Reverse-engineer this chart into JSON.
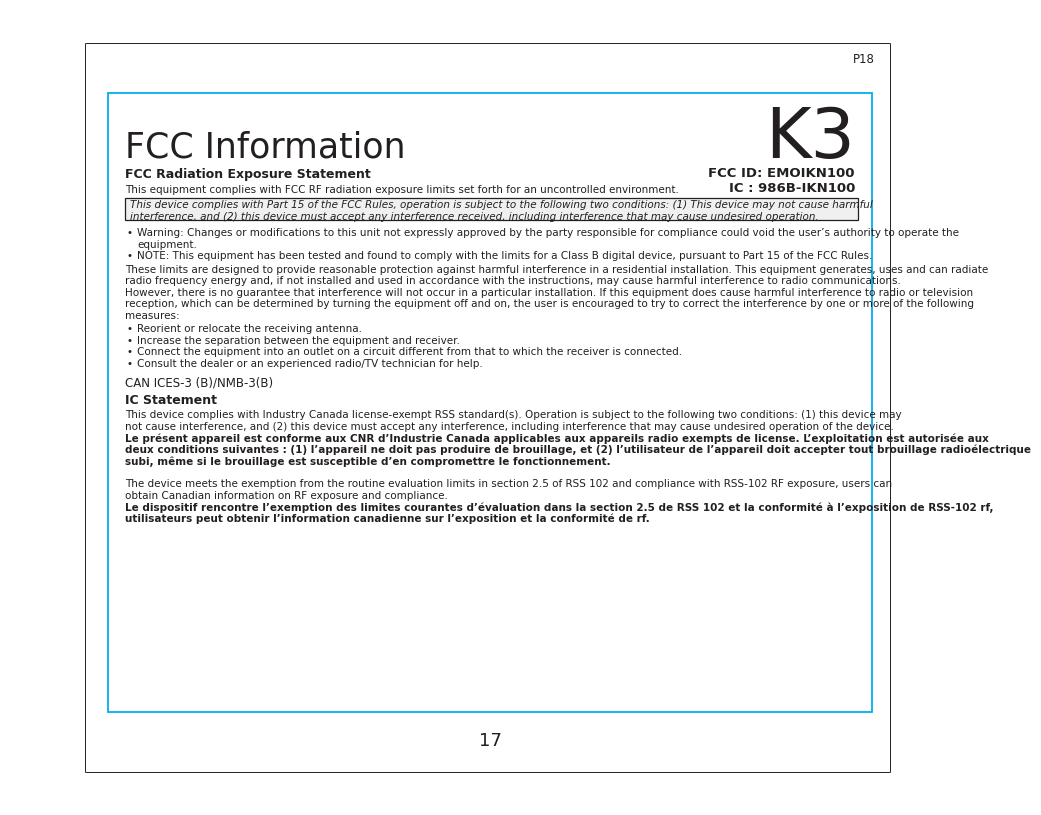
{
  "page_label": "P18",
  "k3_label": "K3",
  "title": "FCC Information",
  "fcc_id_line1": "FCC ID: EMOIKN100",
  "fcc_id_line2": "IC : 986B-IKN100",
  "radiation_heading": "FCC Radiation Exposure Statement",
  "radiation_intro": "This equipment complies with FCC RF radiation exposure limits set forth for an uncontrolled environment.",
  "boxed_text_line1": "This device complies with Part 15 of the FCC Rules, operation is subject to the following two conditions: (1) This device may not cause harmful",
  "boxed_text_line2": "interference, and (2) this device must accept any interference received, including interference that may cause undesired operation.",
  "bullet1_rest": "Warning: Changes or modifications to this unit not expressly approved by the party responsible for compliance could void the user’s authority to operate the",
  "bullet1_rest2": "equipment.",
  "bullet2_rest": "NOTE: This equipment has been tested and found to comply with the limits for a Class B digital device, pursuant to Part 15 of the FCC Rules.",
  "body_line1": "These limits are designed to provide reasonable protection against harmful interference in a residential installation. This equipment generates, uses and can radiate",
  "body_line2": "radio frequency energy and, if not installed and used in accordance with the instructions, may cause harmful interference to radio communications.",
  "body_line3": "However, there is no guarantee that interference will not occur in a particular installation. If this equipment does cause harmful interference to radio or television",
  "body_line4": "reception, which can be determined by turning the equipment off and on, the user is encouraged to try to correct the interference by one or more of the following",
  "body_line5": "measures:",
  "measure1": "Reorient or relocate the receiving antenna.",
  "measure2": "Increase the separation between the equipment and receiver.",
  "measure3": "Connect the equipment into an outlet on a circuit different from that to which the receiver is connected.",
  "measure4": "Consult the dealer or an experienced radio/TV technician for help.",
  "can_label": "CAN ICES-3 (B)/NMB-3(B)",
  "ic_heading": "IC Statement",
  "ic_p1_l1": "This device complies with Industry Canada license-exempt RSS standard(s). Operation is subject to the following two conditions: (1) this device may",
  "ic_p1_l2": "not cause interference, and (2) this device must accept any interference, including interference that may cause undesired operation of the device.",
  "ic_p1_bold_l1": "Le présent appareil est conforme aux CNR d’Industrie Canada applicables aux appareils radio exempts de license. L’exploitation est autorisée aux",
  "ic_p1_bold_l2": "deux conditions suivantes : (1) l’appareil ne doit pas produire de brouillage, et (2) l’utilisateur de l’appareil doit accepter tout brouillage radioélectrique",
  "ic_p1_bold_l3": "subi, même si le brouillage est susceptible d’en compromettre le fonctionnement.",
  "ic_p2_l1": "The device meets the exemption from the routine evaluation limits in section 2.5 of RSS 102 and compliance with RSS-102 RF exposure, users can",
  "ic_p2_l2": "obtain Canadian information on RF exposure and compliance.",
  "ic_p2_bold_l1": "Le dispositif rencontre l’exemption des limites courantes d’évaluation dans la section 2.5 de RSS 102 et la conformité à l’exposition de RSS-102 rf,",
  "ic_p2_bold_l2": "utilisateurs peut obtenir l’information canadienne sur l’exposition et la conformité de rf.",
  "page_number": "17",
  "bg_color": "#ffffff",
  "text_color": "#231f20",
  "border_color": "#00aeef",
  "outer_border_color": "#231f20",
  "lh": 11.5,
  "fs_small": 7.5,
  "fs_body": 7.5
}
